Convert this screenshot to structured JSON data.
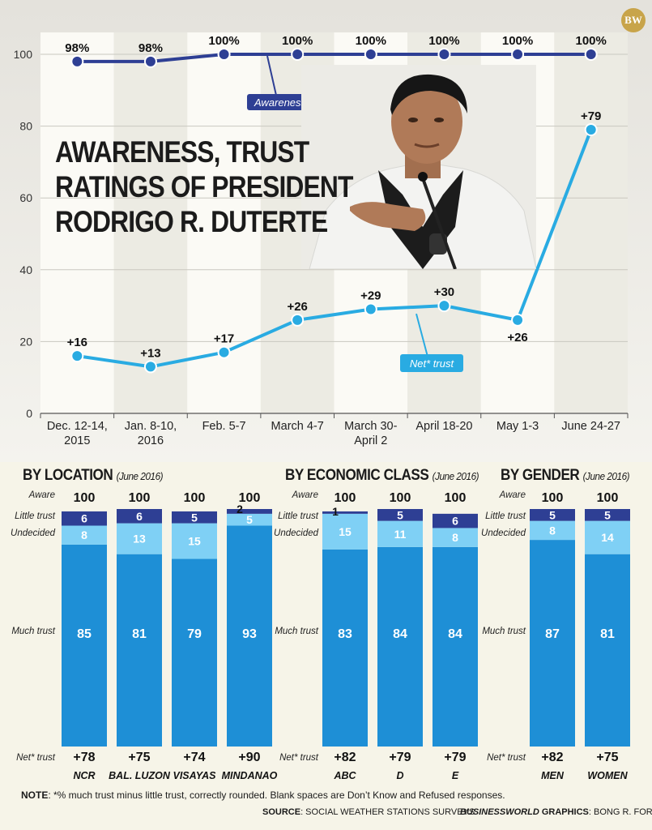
{
  "title_lines": [
    "AWARENESS, TRUST",
    "RATINGS OF PRESIDENT",
    "RODRIGO R. DUTERTE"
  ],
  "logo_text": "BW",
  "colors": {
    "dark_blue": "#2e3f94",
    "light_blue": "#29abe2",
    "bar_blue": "#1e8fd6",
    "mid_blue": "#7fd0f5"
  },
  "chart_data": [
    {
      "type": "line",
      "categories": [
        "Dec. 12-14,\n2015",
        "Jan. 8-10,\n2016",
        "Feb. 5-7",
        "March 4-7",
        "March 30-\nApril 2",
        "April 18-20",
        "May 1-3",
        "June 24-27"
      ],
      "ylim": [
        0,
        100
      ],
      "yticks": [
        0,
        20,
        40,
        60,
        80,
        100
      ],
      "series": [
        {
          "name": "Awareness",
          "values": [
            98,
            98,
            100,
            100,
            100,
            100,
            100,
            100
          ],
          "labels": [
            "98%",
            "98%",
            "100%",
            "100%",
            "100%",
            "100%",
            "100%",
            "100%"
          ]
        },
        {
          "name": "Net* trust",
          "values": [
            16,
            13,
            17,
            26,
            29,
            30,
            26,
            79
          ],
          "labels": [
            "+16",
            "+13",
            "+17",
            "+26",
            "+29",
            "+30",
            "+26",
            "+79"
          ]
        }
      ]
    },
    {
      "type": "bar",
      "stacked": true,
      "row_labels": {
        "aware": "Aware",
        "little": "Little trust",
        "undecided": "Undecided",
        "much": "Much trust",
        "net": "Net* trust"
      },
      "groups": [
        {
          "title": "BY LOCATION",
          "subtitle": "(June 2016)",
          "bars": [
            {
              "name": "NCR",
              "aware": 100,
              "much": 85,
              "undecided": 8,
              "little": 6,
              "net": "+78"
            },
            {
              "name": "BAL. LUZON",
              "aware": 100,
              "much": 81,
              "undecided": 13,
              "little": 6,
              "net": "+75"
            },
            {
              "name": "VISAYAS",
              "aware": 100,
              "much": 79,
              "undecided": 15,
              "little": 5,
              "net": "+74"
            },
            {
              "name": "MINDANAO",
              "aware": 100,
              "much": 93,
              "undecided": 5,
              "little": 2,
              "net": "+90"
            }
          ]
        },
        {
          "title": "BY ECONOMIC CLASS",
          "subtitle": "(June 2016)",
          "bars": [
            {
              "name": "ABC",
              "aware": 100,
              "much": 83,
              "undecided": 15,
              "little": 1,
              "net": "+82"
            },
            {
              "name": "D",
              "aware": 100,
              "much": 84,
              "undecided": 11,
              "little": 5,
              "net": "+79"
            },
            {
              "name": "E",
              "aware": 100,
              "much": 84,
              "undecided": 8,
              "little": 6,
              "net": "+79"
            }
          ]
        },
        {
          "title": "BY GENDER",
          "subtitle": "(June 2016)",
          "bars": [
            {
              "name": "MEN",
              "aware": 100,
              "much": 87,
              "undecided": 8,
              "little": 5,
              "net": "+82"
            },
            {
              "name": "WOMEN",
              "aware": 100,
              "much": 81,
              "undecided": 14,
              "little": 5,
              "net": "+75"
            }
          ]
        }
      ]
    }
  ],
  "note": {
    "label": "NOTE",
    "text": ": *% much trust minus little trust, correctly rounded. Blank spaces are Don’t Know and Refused responses."
  },
  "source": {
    "label": "SOURCE",
    "text": ": SOCIAL WEATHER STATIONS SURVEYS"
  },
  "credit": {
    "label": "BUSINESSWORLD",
    "mid": " GRAPHICS",
    "text": ": BONG R. FORTIN"
  }
}
